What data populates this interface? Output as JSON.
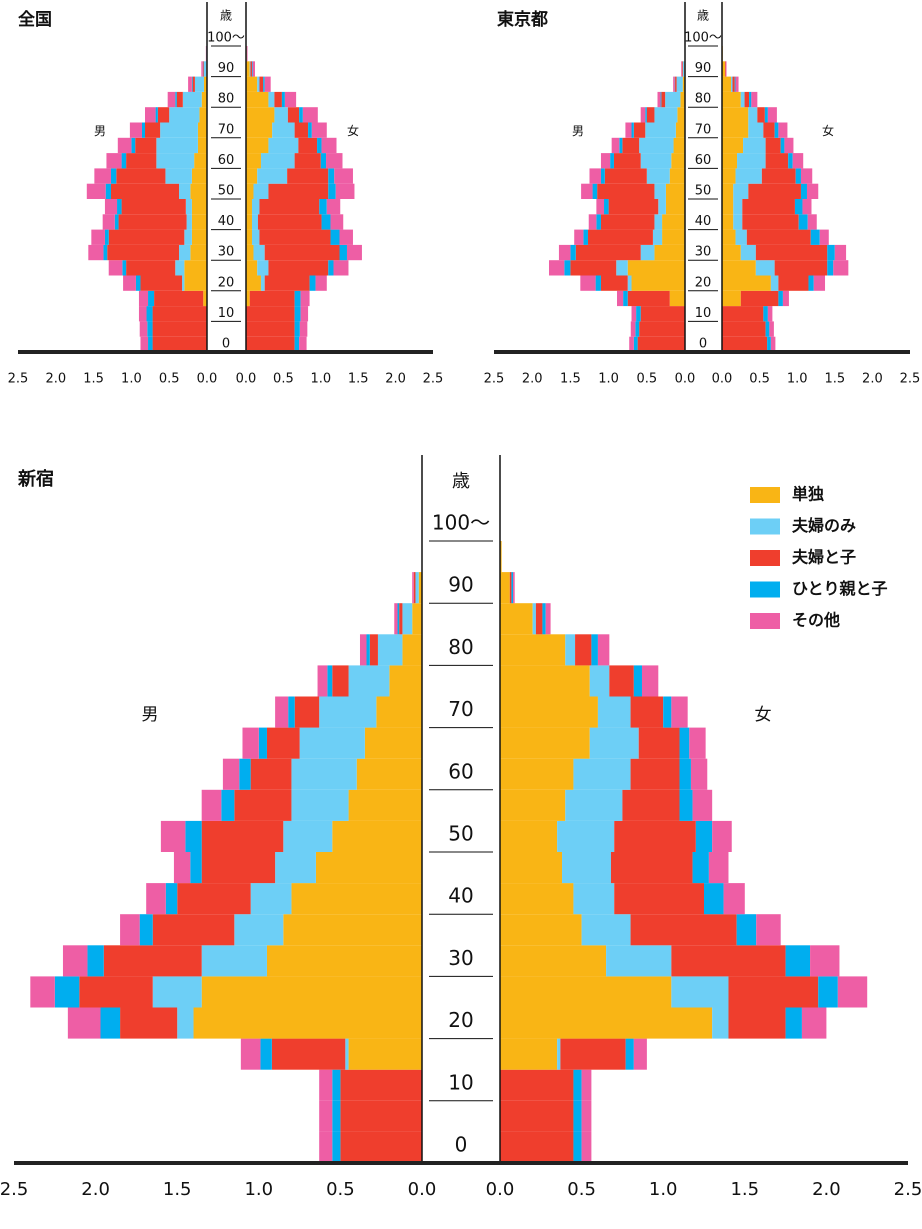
{
  "chart_data": [
    {
      "type": "pyramid",
      "title": "全国",
      "age_label": "歳",
      "left_label": "男",
      "right_label": "女",
      "age_bins": [
        0,
        5,
        10,
        15,
        20,
        25,
        30,
        35,
        40,
        45,
        50,
        55,
        60,
        65,
        70,
        75,
        80,
        85,
        90,
        95,
        100
      ],
      "ylim": [
        0,
        100
      ],
      "yticks": [
        0,
        10,
        20,
        30,
        40,
        50,
        60,
        70,
        80,
        90,
        {
          "value": 100,
          "label": "100〜"
        }
      ],
      "xlim": [
        0,
        2.5
      ],
      "xticks": [
        {
          "value": 0,
          "label": "0.0"
        },
        0.5,
        {
          "value": 1,
          "label": "1.0"
        },
        1.5,
        {
          "value": 2,
          "label": "2.0"
        },
        2.5
      ],
      "series": [
        {
          "color": "#f9b515",
          "male": [
            0,
            0,
            0,
            0.05,
            0.3,
            0.3,
            0.22,
            0.2,
            0.2,
            0.2,
            0.22,
            0.2,
            0.17,
            0.12,
            0.12,
            0.1,
            0.07,
            0.04,
            0.01,
            0
          ],
          "female": [
            0,
            0,
            0,
            0.05,
            0.2,
            0.15,
            0.1,
            0.08,
            0.08,
            0.08,
            0.1,
            0.15,
            0.2,
            0.3,
            0.35,
            0.38,
            0.3,
            0.15,
            0.05,
            0.01
          ]
        },
        {
          "color": "#6dcff6",
          "male": [
            0,
            0,
            0,
            0,
            0.03,
            0.12,
            0.15,
            0.1,
            0.07,
            0.08,
            0.15,
            0.35,
            0.5,
            0.55,
            0.5,
            0.4,
            0.25,
            0.12,
            0.03,
            0.01
          ],
          "female": [
            0,
            0,
            0,
            0,
            0.05,
            0.15,
            0.15,
            0.1,
            0.08,
            0.1,
            0.2,
            0.4,
            0.45,
            0.4,
            0.3,
            0.18,
            0.08,
            0.03,
            0.01,
            0
          ]
        },
        {
          "color": "#ef3e2d",
          "male": [
            0.72,
            0.72,
            0.72,
            0.65,
            0.55,
            0.65,
            0.95,
            1.0,
            0.9,
            0.85,
            0.9,
            0.65,
            0.4,
            0.28,
            0.2,
            0.15,
            0.08,
            0.03,
            0.01,
            0
          ],
          "female": [
            0.65,
            0.65,
            0.65,
            0.6,
            0.6,
            0.8,
            1.0,
            0.95,
            0.85,
            0.8,
            0.8,
            0.55,
            0.35,
            0.25,
            0.18,
            0.15,
            0.1,
            0.05,
            0.02,
            0
          ]
        },
        {
          "color": "#00aeef",
          "male": [
            0.06,
            0.07,
            0.08,
            0.08,
            0.06,
            0.05,
            0.05,
            0.05,
            0.05,
            0.06,
            0.07,
            0.07,
            0.06,
            0.05,
            0.04,
            0.03,
            0.02,
            0.01,
            0.005,
            0
          ],
          "female": [
            0.06,
            0.07,
            0.08,
            0.08,
            0.08,
            0.07,
            0.1,
            0.12,
            0.12,
            0.1,
            0.1,
            0.08,
            0.07,
            0.06,
            0.05,
            0.05,
            0.04,
            0.02,
            0.01,
            0
          ]
        },
        {
          "color": "#ee5ea5",
          "male": [
            0.1,
            0.1,
            0.1,
            0.12,
            0.17,
            0.18,
            0.2,
            0.18,
            0.16,
            0.16,
            0.25,
            0.22,
            0.2,
            0.18,
            0.16,
            0.14,
            0.1,
            0.05,
            0.02,
            0.005
          ],
          "female": [
            0.1,
            0.1,
            0.1,
            0.12,
            0.15,
            0.2,
            0.2,
            0.18,
            0.17,
            0.18,
            0.25,
            0.25,
            0.22,
            0.2,
            0.2,
            0.2,
            0.15,
            0.08,
            0.03,
            0.01
          ]
        }
      ]
    },
    {
      "type": "pyramid",
      "title": "東京都",
      "age_label": "歳",
      "left_label": "男",
      "right_label": "女",
      "age_bins": [
        0,
        5,
        10,
        15,
        20,
        25,
        30,
        35,
        40,
        45,
        50,
        55,
        60,
        65,
        70,
        75,
        80,
        85,
        90,
        95,
        100
      ],
      "ylim": [
        0,
        100
      ],
      "yticks": [
        0,
        10,
        20,
        30,
        40,
        50,
        60,
        70,
        80,
        90,
        {
          "value": 100,
          "label": "100〜"
        }
      ],
      "xlim": [
        0,
        2.5
      ],
      "xticks": [
        {
          "value": 0,
          "label": "0.0"
        },
        0.5,
        {
          "value": 1,
          "label": "1.0"
        },
        1.5,
        {
          "value": 2,
          "label": "2.0"
        },
        2.5
      ],
      "series": [
        {
          "color": "#f9b515",
          "male": [
            0,
            0,
            0,
            0.2,
            0.7,
            0.75,
            0.4,
            0.3,
            0.3,
            0.25,
            0.25,
            0.2,
            0.18,
            0.15,
            0.12,
            0.1,
            0.06,
            0.03,
            0.01,
            0
          ],
          "female": [
            0,
            0,
            0,
            0.25,
            0.65,
            0.45,
            0.25,
            0.18,
            0.15,
            0.15,
            0.15,
            0.18,
            0.2,
            0.28,
            0.35,
            0.35,
            0.25,
            0.12,
            0.04,
            0.01
          ]
        },
        {
          "color": "#6dcff6",
          "male": [
            0,
            0,
            0,
            0,
            0.05,
            0.15,
            0.18,
            0.12,
            0.1,
            0.1,
            0.15,
            0.3,
            0.4,
            0.45,
            0.4,
            0.3,
            0.2,
            0.08,
            0.02,
            0
          ],
          "female": [
            0,
            0,
            0,
            0,
            0.1,
            0.25,
            0.2,
            0.15,
            0.12,
            0.12,
            0.2,
            0.35,
            0.38,
            0.3,
            0.2,
            0.12,
            0.05,
            0.02,
            0,
            0
          ]
        },
        {
          "color": "#ef3e2d",
          "male": [
            0.62,
            0.6,
            0.58,
            0.55,
            0.35,
            0.6,
            0.85,
            0.85,
            0.7,
            0.65,
            0.75,
            0.55,
            0.35,
            0.22,
            0.15,
            0.1,
            0.05,
            0.02,
            0.01,
            0
          ],
          "female": [
            0.6,
            0.58,
            0.55,
            0.5,
            0.4,
            0.7,
            0.95,
            0.85,
            0.75,
            0.7,
            0.7,
            0.45,
            0.3,
            0.2,
            0.15,
            0.1,
            0.06,
            0.03,
            0.01,
            0
          ]
        },
        {
          "color": "#00aeef",
          "male": [
            0.05,
            0.05,
            0.06,
            0.06,
            0.07,
            0.08,
            0.07,
            0.06,
            0.06,
            0.06,
            0.06,
            0.05,
            0.05,
            0.04,
            0.03,
            0.02,
            0.01,
            0.005,
            0,
            0
          ],
          "female": [
            0.05,
            0.05,
            0.06,
            0.06,
            0.07,
            0.08,
            0.1,
            0.12,
            0.12,
            0.1,
            0.08,
            0.07,
            0.06,
            0.05,
            0.05,
            0.04,
            0.03,
            0.01,
            0,
            0
          ]
        },
        {
          "color": "#ee5ea5",
          "male": [
            0.06,
            0.06,
            0.06,
            0.08,
            0.2,
            0.2,
            0.15,
            0.12,
            0.1,
            0.1,
            0.15,
            0.15,
            0.12,
            0.1,
            0.08,
            0.06,
            0.04,
            0.02,
            0.01,
            0
          ],
          "female": [
            0.06,
            0.06,
            0.06,
            0.08,
            0.15,
            0.2,
            0.15,
            0.12,
            0.12,
            0.12,
            0.15,
            0.15,
            0.14,
            0.12,
            0.12,
            0.12,
            0.08,
            0.04,
            0.01,
            0
          ]
        }
      ]
    },
    {
      "type": "pyramid",
      "title": "新宿",
      "age_label": "歳",
      "left_label": "男",
      "right_label": "女",
      "age_bins": [
        0,
        5,
        10,
        15,
        20,
        25,
        30,
        35,
        40,
        45,
        50,
        55,
        60,
        65,
        70,
        75,
        80,
        85,
        90,
        95,
        100
      ],
      "ylim": [
        0,
        100
      ],
      "yticks": [
        0,
        10,
        20,
        30,
        40,
        50,
        60,
        70,
        80,
        90,
        {
          "value": 100,
          "label": "100〜"
        }
      ],
      "xlim": [
        0,
        2.5
      ],
      "xticks": [
        {
          "value": 0,
          "label": "0.0"
        },
        0.5,
        {
          "value": 1,
          "label": "1.0"
        },
        1.5,
        {
          "value": 2,
          "label": "2.0"
        },
        2.5
      ],
      "series": [
        {
          "name": "単独",
          "color": "#f9b515",
          "male": [
            0,
            0,
            0,
            0.45,
            1.4,
            1.35,
            0.95,
            0.85,
            0.8,
            0.65,
            0.55,
            0.45,
            0.4,
            0.35,
            0.28,
            0.2,
            0.12,
            0.06,
            0.02,
            0
          ],
          "female": [
            0,
            0,
            0,
            0.35,
            1.3,
            1.05,
            0.65,
            0.5,
            0.45,
            0.38,
            0.35,
            0.4,
            0.45,
            0.55,
            0.6,
            0.55,
            0.4,
            0.2,
            0.06,
            0.01
          ]
        },
        {
          "name": "夫婦のみ",
          "color": "#6dcff6",
          "male": [
            0,
            0,
            0,
            0.02,
            0.1,
            0.3,
            0.4,
            0.3,
            0.25,
            0.25,
            0.3,
            0.35,
            0.4,
            0.4,
            0.35,
            0.25,
            0.15,
            0.06,
            0.02,
            0
          ],
          "female": [
            0,
            0,
            0,
            0.02,
            0.1,
            0.35,
            0.4,
            0.3,
            0.25,
            0.3,
            0.35,
            0.35,
            0.35,
            0.3,
            0.2,
            0.12,
            0.06,
            0.02,
            0,
            0
          ]
        },
        {
          "name": "夫婦と子",
          "color": "#ef3e2d",
          "male": [
            0.5,
            0.5,
            0.5,
            0.45,
            0.35,
            0.45,
            0.6,
            0.5,
            0.45,
            0.45,
            0.5,
            0.35,
            0.25,
            0.2,
            0.15,
            0.1,
            0.05,
            0.02,
            0.01,
            0
          ],
          "female": [
            0.45,
            0.45,
            0.45,
            0.4,
            0.35,
            0.55,
            0.7,
            0.65,
            0.55,
            0.5,
            0.5,
            0.35,
            0.3,
            0.25,
            0.2,
            0.15,
            0.1,
            0.04,
            0.01,
            0
          ]
        },
        {
          "name": "ひとり親と子",
          "color": "#00aeef",
          "male": [
            0.05,
            0.05,
            0.05,
            0.07,
            0.12,
            0.15,
            0.1,
            0.08,
            0.07,
            0.07,
            0.1,
            0.08,
            0.07,
            0.05,
            0.04,
            0.03,
            0.02,
            0.01,
            0,
            0
          ],
          "female": [
            0.05,
            0.05,
            0.05,
            0.05,
            0.1,
            0.12,
            0.15,
            0.12,
            0.12,
            0.1,
            0.1,
            0.08,
            0.07,
            0.06,
            0.05,
            0.05,
            0.04,
            0.02,
            0.01,
            0
          ]
        },
        {
          "name": "その他",
          "color": "#ee5ea5",
          "male": [
            0.08,
            0.08,
            0.08,
            0.12,
            0.2,
            0.15,
            0.15,
            0.12,
            0.12,
            0.1,
            0.15,
            0.12,
            0.1,
            0.1,
            0.08,
            0.06,
            0.04,
            0.02,
            0.01,
            0
          ],
          "female": [
            0.06,
            0.06,
            0.06,
            0.08,
            0.15,
            0.18,
            0.18,
            0.15,
            0.13,
            0.12,
            0.12,
            0.12,
            0.1,
            0.1,
            0.1,
            0.1,
            0.07,
            0.03,
            0.01,
            0
          ]
        }
      ]
    }
  ]
}
